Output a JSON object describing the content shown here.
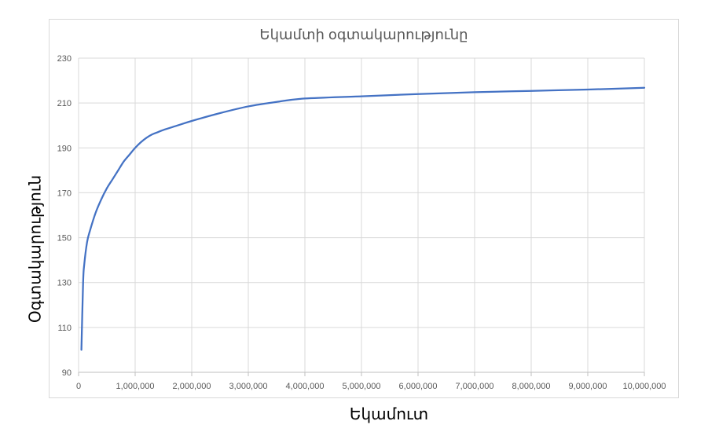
{
  "chart_data": {
    "type": "line",
    "title": "Եկամտի օգտակարությունը",
    "xlabel": "Եկամուտ",
    "ylabel": "Օգտակարություն",
    "xlim": [
      0,
      10000000
    ],
    "ylim": [
      90,
      230
    ],
    "x_ticks": [
      0,
      1000000,
      2000000,
      3000000,
      4000000,
      5000000,
      6000000,
      7000000,
      8000000,
      9000000,
      10000000
    ],
    "x_tick_labels": [
      "0",
      "1,000,000",
      "2,000,000",
      "3,000,000",
      "4,000,000",
      "5,000,000",
      "6,000,000",
      "7,000,000",
      "8,000,000",
      "9,000,000",
      "10,000,000"
    ],
    "y_ticks": [
      90,
      110,
      130,
      150,
      170,
      190,
      210,
      230
    ],
    "y_tick_labels": [
      "90",
      "110",
      "130",
      "150",
      "170",
      "190",
      "210",
      "230"
    ],
    "grid": true,
    "legend": "none",
    "series": [
      {
        "color": "#4472c4",
        "x": [
          50000,
          80000,
          100000,
          150000,
          200000,
          300000,
          400000,
          500000,
          600000,
          700000,
          800000,
          900000,
          1000000,
          1100000,
          1200000,
          1300000,
          1400000,
          1500000,
          1750000,
          2000000,
          2500000,
          3000000,
          3500000,
          4000000,
          5000000,
          6000000,
          7000000,
          8000000,
          9000000,
          10000000
        ],
        "y": [
          100,
          130,
          138,
          148,
          153,
          161,
          167,
          172,
          176,
          180,
          184,
          187,
          190,
          192.5,
          194.5,
          196,
          197,
          198,
          200,
          202,
          205.5,
          208.5,
          210.5,
          212,
          213,
          214,
          214.8,
          215.4,
          216,
          216.8
        ]
      }
    ]
  }
}
